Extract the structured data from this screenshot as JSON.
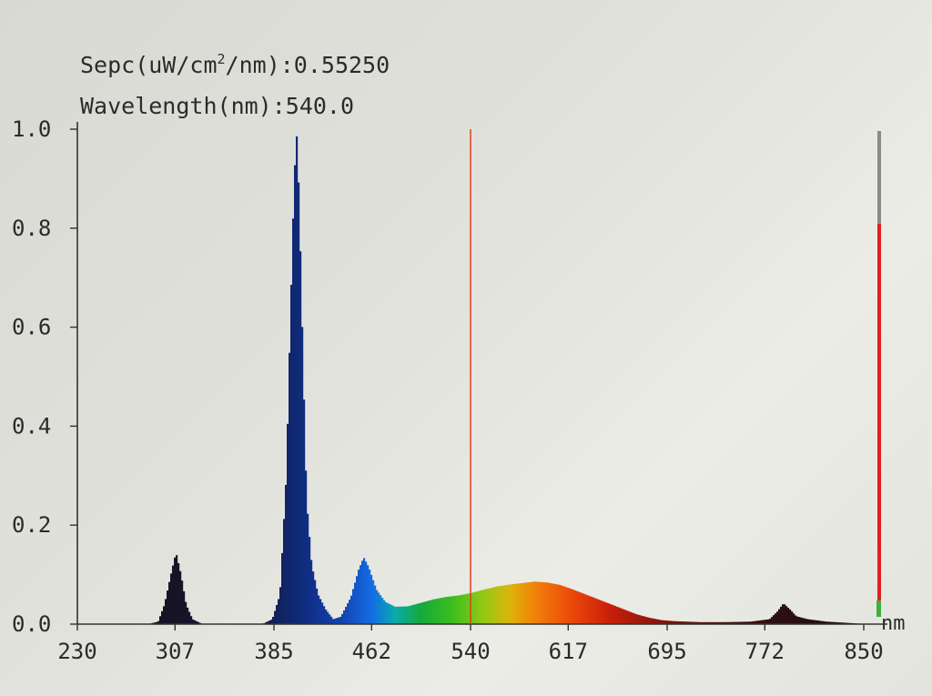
{
  "readout": {
    "spec_prefix": "Sepc(uW/cm",
    "spec_sup": "2",
    "spec_suffix": "/nm):0.55250",
    "wavelength": "Wavelength(nm):540.0"
  },
  "chart_data": {
    "type": "area",
    "xlim": [
      230,
      865
    ],
    "ylim": [
      0,
      1.0
    ],
    "x_ticks": [
      230,
      307,
      385,
      462,
      540,
      617,
      695,
      772,
      850
    ],
    "y_ticks": [
      0.0,
      0.2,
      0.4,
      0.6,
      0.8,
      1.0
    ],
    "y_tick_labels": [
      "0.0",
      "0.2",
      "0.4",
      "0.6",
      "0.8",
      "1.0"
    ],
    "x_unit": "nm",
    "cursor_wavelength": 540.0,
    "cursor_color": "#e83a1f",
    "level_bar": {
      "value": 0.8,
      "max": 1.0,
      "track_color": "#8a8a8a",
      "fill_color": "#e02020"
    },
    "spectrum": [
      [
        230,
        0.0
      ],
      [
        285,
        0.0
      ],
      [
        293,
        0.005
      ],
      [
        298,
        0.04
      ],
      [
        303,
        0.1
      ],
      [
        307,
        0.145
      ],
      [
        311,
        0.1
      ],
      [
        315,
        0.04
      ],
      [
        320,
        0.01
      ],
      [
        328,
        0.0
      ],
      [
        375,
        0.0
      ],
      [
        383,
        0.01
      ],
      [
        389,
        0.06
      ],
      [
        394,
        0.3
      ],
      [
        397,
        0.6
      ],
      [
        400,
        0.88
      ],
      [
        402,
        1.0
      ],
      [
        404,
        0.87
      ],
      [
        407,
        0.55
      ],
      [
        410,
        0.25
      ],
      [
        414,
        0.12
      ],
      [
        419,
        0.06
      ],
      [
        425,
        0.03
      ],
      [
        431,
        0.01
      ],
      [
        437,
        0.015
      ],
      [
        445,
        0.055
      ],
      [
        451,
        0.11
      ],
      [
        455,
        0.135
      ],
      [
        459,
        0.115
      ],
      [
        465,
        0.07
      ],
      [
        472,
        0.045
      ],
      [
        480,
        0.035
      ],
      [
        490,
        0.036
      ],
      [
        500,
        0.043
      ],
      [
        510,
        0.05
      ],
      [
        520,
        0.055
      ],
      [
        530,
        0.058
      ],
      [
        540,
        0.063
      ],
      [
        550,
        0.07
      ],
      [
        560,
        0.076
      ],
      [
        570,
        0.08
      ],
      [
        580,
        0.083
      ],
      [
        590,
        0.086
      ],
      [
        600,
        0.084
      ],
      [
        610,
        0.079
      ],
      [
        620,
        0.07
      ],
      [
        630,
        0.06
      ],
      [
        640,
        0.05
      ],
      [
        650,
        0.04
      ],
      [
        660,
        0.03
      ],
      [
        670,
        0.02
      ],
      [
        680,
        0.013
      ],
      [
        690,
        0.008
      ],
      [
        700,
        0.006
      ],
      [
        720,
        0.004
      ],
      [
        740,
        0.004
      ],
      [
        760,
        0.005
      ],
      [
        775,
        0.01
      ],
      [
        781,
        0.025
      ],
      [
        786,
        0.042
      ],
      [
        791,
        0.03
      ],
      [
        796,
        0.016
      ],
      [
        805,
        0.01
      ],
      [
        820,
        0.005
      ],
      [
        840,
        0.002
      ],
      [
        852,
        0.0
      ]
    ]
  }
}
